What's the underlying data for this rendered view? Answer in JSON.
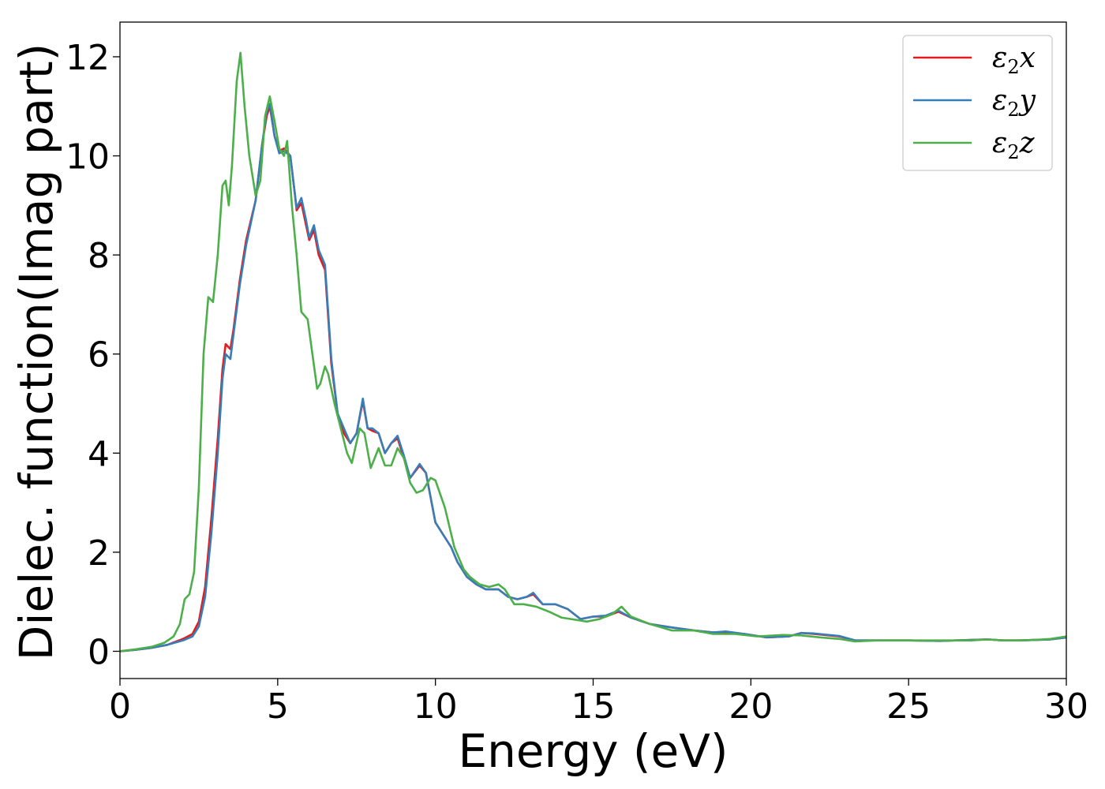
{
  "chart_data": {
    "type": "line",
    "xlabel": "Energy (eV)",
    "ylabel": "Dielec. function(Imag part)",
    "xlim": [
      0,
      30
    ],
    "ylim": [
      -0.55,
      12.7
    ],
    "xticks": [
      0,
      5,
      10,
      15,
      20,
      25,
      30
    ],
    "xtick_labels": [
      "0",
      "5",
      "10",
      "15",
      "20",
      "25",
      "30"
    ],
    "yticks": [
      0,
      2,
      4,
      6,
      8,
      10,
      12
    ],
    "ytick_labels": [
      "0",
      "2",
      "4",
      "6",
      "8",
      "10",
      "12"
    ],
    "grid": false,
    "legend_position": "top-right",
    "series": [
      {
        "name": "ε₂x",
        "legend_base": "ε",
        "legend_sub": "2",
        "legend_var": "x",
        "color": "#e41a1c",
        "points": [
          [
            0,
            0
          ],
          [
            0.5,
            0.03
          ],
          [
            1.0,
            0.07
          ],
          [
            1.5,
            0.13
          ],
          [
            2.0,
            0.25
          ],
          [
            2.3,
            0.35
          ],
          [
            2.5,
            0.6
          ],
          [
            2.7,
            1.3
          ],
          [
            2.9,
            2.7
          ],
          [
            3.1,
            4.3
          ],
          [
            3.25,
            5.7
          ],
          [
            3.35,
            6.2
          ],
          [
            3.5,
            6.1
          ],
          [
            3.6,
            6.5
          ],
          [
            3.8,
            7.5
          ],
          [
            4.0,
            8.3
          ],
          [
            4.3,
            9.1
          ],
          [
            4.5,
            10.2
          ],
          [
            4.65,
            10.8
          ],
          [
            4.75,
            11.0
          ],
          [
            4.9,
            10.4
          ],
          [
            5.05,
            10.1
          ],
          [
            5.2,
            10.15
          ],
          [
            5.4,
            10.0
          ],
          [
            5.55,
            9.2
          ],
          [
            5.6,
            8.9
          ],
          [
            5.75,
            9.05
          ],
          [
            5.9,
            8.6
          ],
          [
            6.0,
            8.3
          ],
          [
            6.15,
            8.5
          ],
          [
            6.3,
            8.0
          ],
          [
            6.5,
            7.7
          ],
          [
            6.7,
            5.8
          ],
          [
            6.9,
            4.8
          ],
          [
            7.1,
            4.4
          ],
          [
            7.3,
            4.2
          ],
          [
            7.5,
            4.4
          ],
          [
            7.7,
            5.05
          ],
          [
            7.85,
            4.5
          ],
          [
            8.0,
            4.45
          ],
          [
            8.2,
            4.4
          ],
          [
            8.4,
            4.0
          ],
          [
            8.6,
            4.2
          ],
          [
            8.8,
            4.3
          ],
          [
            9.0,
            3.9
          ],
          [
            9.2,
            3.5
          ],
          [
            9.5,
            3.75
          ],
          [
            9.7,
            3.6
          ],
          [
            10.0,
            2.6
          ],
          [
            10.3,
            2.3
          ],
          [
            10.5,
            2.1
          ],
          [
            10.7,
            1.8
          ],
          [
            11.0,
            1.5
          ],
          [
            11.3,
            1.35
          ],
          [
            11.6,
            1.25
          ],
          [
            12.0,
            1.25
          ],
          [
            12.3,
            1.1
          ],
          [
            12.6,
            1.05
          ],
          [
            12.9,
            1.1
          ],
          [
            13.1,
            1.15
          ],
          [
            13.4,
            0.95
          ],
          [
            13.8,
            0.95
          ],
          [
            14.2,
            0.85
          ],
          [
            14.6,
            0.65
          ],
          [
            15.0,
            0.7
          ],
          [
            15.4,
            0.7
          ],
          [
            15.8,
            0.8
          ],
          [
            16.2,
            0.68
          ],
          [
            16.8,
            0.55
          ],
          [
            17.5,
            0.48
          ],
          [
            18.2,
            0.42
          ],
          [
            18.8,
            0.38
          ],
          [
            19.2,
            0.38
          ],
          [
            19.8,
            0.35
          ],
          [
            20.5,
            0.28
          ],
          [
            21.2,
            0.3
          ],
          [
            21.6,
            0.37
          ],
          [
            22.0,
            0.35
          ],
          [
            22.8,
            0.3
          ],
          [
            23.3,
            0.22
          ],
          [
            24.0,
            0.22
          ],
          [
            25.0,
            0.22
          ],
          [
            26.0,
            0.21
          ],
          [
            27.0,
            0.23
          ],
          [
            27.5,
            0.24
          ],
          [
            28.0,
            0.22
          ],
          [
            28.5,
            0.22
          ],
          [
            29.0,
            0.23
          ],
          [
            29.5,
            0.24
          ],
          [
            30.0,
            0.28
          ]
        ]
      },
      {
        "name": "ε₂y",
        "legend_base": "ε",
        "legend_sub": "2",
        "legend_var": "y",
        "color": "#377eb8",
        "points": [
          [
            0,
            0
          ],
          [
            0.5,
            0.03
          ],
          [
            1.0,
            0.07
          ],
          [
            1.5,
            0.13
          ],
          [
            2.0,
            0.22
          ],
          [
            2.3,
            0.3
          ],
          [
            2.5,
            0.5
          ],
          [
            2.7,
            1.1
          ],
          [
            2.9,
            2.4
          ],
          [
            3.1,
            4.0
          ],
          [
            3.25,
            5.5
          ],
          [
            3.35,
            6.0
          ],
          [
            3.5,
            5.9
          ],
          [
            3.6,
            6.4
          ],
          [
            3.8,
            7.4
          ],
          [
            4.0,
            8.2
          ],
          [
            4.3,
            9.1
          ],
          [
            4.5,
            10.2
          ],
          [
            4.65,
            10.9
          ],
          [
            4.75,
            11.05
          ],
          [
            4.9,
            10.4
          ],
          [
            5.05,
            10.05
          ],
          [
            5.2,
            10.1
          ],
          [
            5.4,
            10.0
          ],
          [
            5.55,
            9.2
          ],
          [
            5.6,
            8.95
          ],
          [
            5.75,
            9.15
          ],
          [
            5.9,
            8.7
          ],
          [
            6.0,
            8.35
          ],
          [
            6.15,
            8.6
          ],
          [
            6.3,
            8.1
          ],
          [
            6.5,
            7.8
          ],
          [
            6.7,
            5.9
          ],
          [
            6.9,
            4.8
          ],
          [
            7.1,
            4.5
          ],
          [
            7.3,
            4.2
          ],
          [
            7.5,
            4.4
          ],
          [
            7.7,
            5.1
          ],
          [
            7.85,
            4.5
          ],
          [
            8.0,
            4.5
          ],
          [
            8.2,
            4.4
          ],
          [
            8.4,
            4.0
          ],
          [
            8.6,
            4.2
          ],
          [
            8.8,
            4.35
          ],
          [
            9.0,
            3.95
          ],
          [
            9.2,
            3.5
          ],
          [
            9.5,
            3.78
          ],
          [
            9.7,
            3.6
          ],
          [
            10.0,
            2.6
          ],
          [
            10.3,
            2.3
          ],
          [
            10.5,
            2.1
          ],
          [
            10.7,
            1.8
          ],
          [
            11.0,
            1.5
          ],
          [
            11.3,
            1.35
          ],
          [
            11.6,
            1.25
          ],
          [
            12.0,
            1.25
          ],
          [
            12.3,
            1.1
          ],
          [
            12.6,
            1.05
          ],
          [
            12.9,
            1.1
          ],
          [
            13.1,
            1.18
          ],
          [
            13.4,
            0.95
          ],
          [
            13.8,
            0.95
          ],
          [
            14.2,
            0.85
          ],
          [
            14.6,
            0.65
          ],
          [
            15.0,
            0.7
          ],
          [
            15.4,
            0.72
          ],
          [
            15.8,
            0.82
          ],
          [
            16.2,
            0.68
          ],
          [
            16.8,
            0.55
          ],
          [
            17.5,
            0.48
          ],
          [
            18.2,
            0.42
          ],
          [
            18.8,
            0.38
          ],
          [
            19.2,
            0.4
          ],
          [
            19.8,
            0.35
          ],
          [
            20.5,
            0.28
          ],
          [
            21.2,
            0.3
          ],
          [
            21.6,
            0.37
          ],
          [
            22.0,
            0.36
          ],
          [
            22.8,
            0.31
          ],
          [
            23.3,
            0.22
          ],
          [
            24.0,
            0.22
          ],
          [
            25.0,
            0.22
          ],
          [
            26.0,
            0.21
          ],
          [
            27.0,
            0.23
          ],
          [
            27.5,
            0.24
          ],
          [
            28.0,
            0.22
          ],
          [
            28.5,
            0.22
          ],
          [
            29.0,
            0.23
          ],
          [
            29.5,
            0.24
          ],
          [
            30.0,
            0.28
          ]
        ]
      },
      {
        "name": "ε₂z",
        "legend_base": "ε",
        "legend_sub": "2",
        "legend_var": "z",
        "color": "#4daf4a",
        "points": [
          [
            0,
            0
          ],
          [
            0.5,
            0.04
          ],
          [
            1.0,
            0.09
          ],
          [
            1.4,
            0.17
          ],
          [
            1.7,
            0.3
          ],
          [
            1.9,
            0.55
          ],
          [
            2.05,
            1.05
          ],
          [
            2.2,
            1.15
          ],
          [
            2.35,
            1.6
          ],
          [
            2.5,
            3.3
          ],
          [
            2.65,
            6.0
          ],
          [
            2.8,
            7.15
          ],
          [
            2.95,
            7.05
          ],
          [
            3.1,
            8.0
          ],
          [
            3.25,
            9.4
          ],
          [
            3.35,
            9.5
          ],
          [
            3.45,
            9.0
          ],
          [
            3.55,
            9.8
          ],
          [
            3.7,
            11.5
          ],
          [
            3.82,
            12.08
          ],
          [
            3.95,
            11.0
          ],
          [
            4.1,
            10.0
          ],
          [
            4.3,
            9.2
          ],
          [
            4.45,
            9.5
          ],
          [
            4.6,
            10.8
          ],
          [
            4.75,
            11.2
          ],
          [
            4.9,
            10.7
          ],
          [
            5.05,
            10.15
          ],
          [
            5.2,
            10.0
          ],
          [
            5.3,
            10.3
          ],
          [
            5.45,
            9.0
          ],
          [
            5.6,
            8.0
          ],
          [
            5.75,
            6.85
          ],
          [
            5.95,
            6.7
          ],
          [
            6.1,
            6.0
          ],
          [
            6.25,
            5.3
          ],
          [
            6.35,
            5.4
          ],
          [
            6.5,
            5.75
          ],
          [
            6.6,
            5.6
          ],
          [
            6.8,
            5.0
          ],
          [
            7.0,
            4.5
          ],
          [
            7.2,
            4.0
          ],
          [
            7.35,
            3.8
          ],
          [
            7.6,
            4.5
          ],
          [
            7.75,
            4.4
          ],
          [
            7.95,
            3.7
          ],
          [
            8.2,
            4.1
          ],
          [
            8.4,
            3.75
          ],
          [
            8.6,
            3.75
          ],
          [
            8.8,
            4.1
          ],
          [
            9.0,
            3.9
          ],
          [
            9.2,
            3.4
          ],
          [
            9.4,
            3.2
          ],
          [
            9.6,
            3.25
          ],
          [
            9.85,
            3.5
          ],
          [
            10.0,
            3.45
          ],
          [
            10.3,
            2.9
          ],
          [
            10.6,
            2.1
          ],
          [
            10.9,
            1.65
          ],
          [
            11.1,
            1.5
          ],
          [
            11.4,
            1.35
          ],
          [
            11.7,
            1.3
          ],
          [
            12.0,
            1.35
          ],
          [
            12.2,
            1.25
          ],
          [
            12.5,
            0.95
          ],
          [
            12.8,
            0.95
          ],
          [
            13.2,
            0.9
          ],
          [
            13.6,
            0.8
          ],
          [
            14.0,
            0.68
          ],
          [
            14.5,
            0.63
          ],
          [
            14.8,
            0.6
          ],
          [
            15.2,
            0.65
          ],
          [
            15.6,
            0.75
          ],
          [
            15.9,
            0.9
          ],
          [
            16.2,
            0.7
          ],
          [
            16.8,
            0.55
          ],
          [
            17.5,
            0.42
          ],
          [
            18.2,
            0.42
          ],
          [
            18.8,
            0.35
          ],
          [
            19.5,
            0.35
          ],
          [
            20.2,
            0.3
          ],
          [
            21.0,
            0.33
          ],
          [
            21.6,
            0.32
          ],
          [
            22.2,
            0.28
          ],
          [
            22.8,
            0.25
          ],
          [
            23.3,
            0.2
          ],
          [
            24.0,
            0.22
          ],
          [
            25.0,
            0.22
          ],
          [
            26.0,
            0.22
          ],
          [
            27.0,
            0.22
          ],
          [
            27.5,
            0.24
          ],
          [
            28.0,
            0.22
          ],
          [
            28.5,
            0.22
          ],
          [
            29.0,
            0.23
          ],
          [
            29.5,
            0.25
          ],
          [
            30.0,
            0.3
          ]
        ]
      }
    ]
  }
}
